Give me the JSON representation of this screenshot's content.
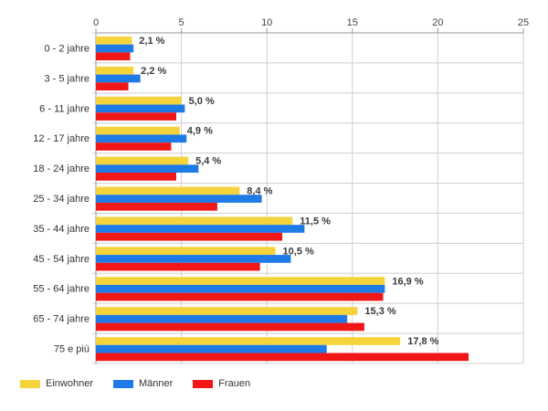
{
  "chart_data": {
    "type": "bar",
    "orientation": "horizontal",
    "categories": [
      "0 - 2 jahre",
      "3 - 5 jahre",
      "6 - 11 jahre",
      "12 - 17 jahre",
      "18 - 24 jahre",
      "25 - 34 jahre",
      "35 - 44 jahre",
      "45 - 54 jahre",
      "55 - 64 jahre",
      "65 - 74 jahre",
      "75 e più"
    ],
    "series": [
      {
        "name": "Einwohner",
        "color": "#f5d33a",
        "values": [
          2.1,
          2.2,
          5.0,
          4.9,
          5.4,
          8.4,
          11.5,
          10.5,
          16.9,
          15.3,
          17.8
        ]
      },
      {
        "name": "Männer",
        "color": "#1e7be6",
        "values": [
          2.2,
          2.6,
          5.2,
          5.3,
          6.0,
          9.7,
          12.2,
          11.4,
          16.9,
          14.7,
          13.5
        ]
      },
      {
        "name": "Frauen",
        "color": "#f21717",
        "values": [
          2.0,
          1.9,
          4.7,
          4.4,
          4.7,
          7.1,
          10.9,
          9.6,
          16.8,
          15.7,
          21.8
        ]
      }
    ],
    "data_labels": [
      "2,1 %",
      "2,2 %",
      "5,0 %",
      "4,9 %",
      "5,4 %",
      "8,4 %",
      "11,5 %",
      "10,5 %",
      "16,9 %",
      "15,3 %",
      "17,8 %"
    ],
    "xlim": [
      0,
      25
    ],
    "xticks": [
      0,
      5,
      10,
      15,
      20,
      25
    ],
    "grid": true,
    "legend": "bottom-left",
    "title": "",
    "xlabel": "",
    "ylabel": ""
  },
  "legend": {
    "items": [
      {
        "label": "Einwohner",
        "color": "#f5d33a"
      },
      {
        "label": "Männer",
        "color": "#1e7be6"
      },
      {
        "label": "Frauen",
        "color": "#f21717"
      }
    ]
  }
}
